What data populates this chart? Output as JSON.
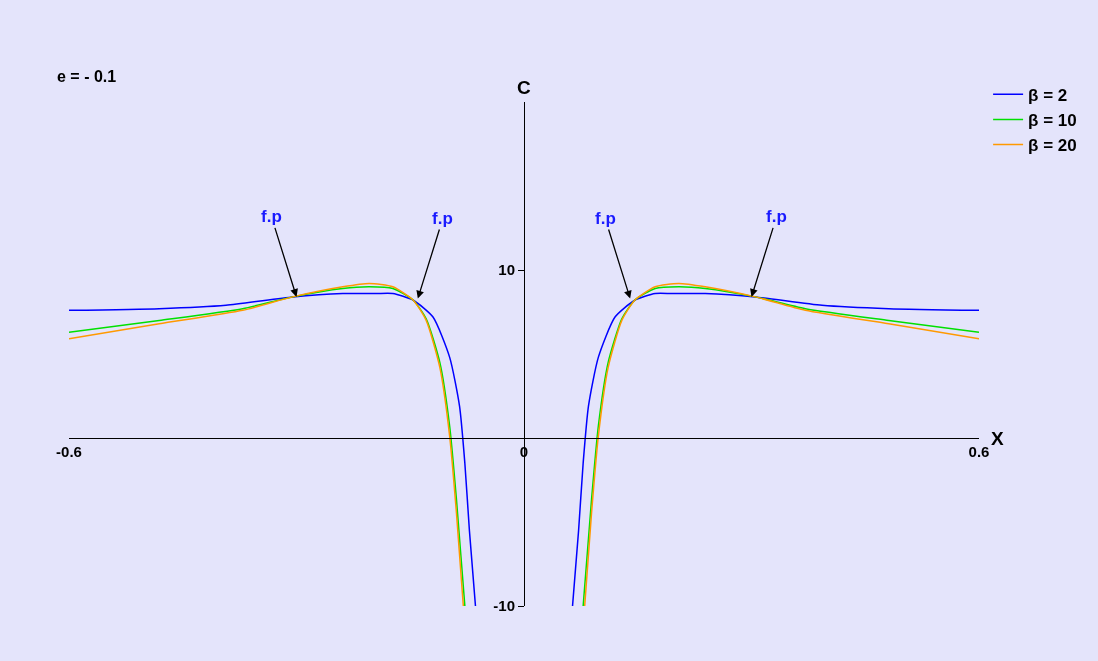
{
  "chart_data": {
    "type": "line",
    "xlabel": "X",
    "ylabel": "C",
    "annotations": [
      "e = - 0.1",
      {
        "text": "f.p",
        "x": -0.3,
        "y": 8.4
      },
      {
        "text": "f.p",
        "x": -0.14,
        "y": 8.3
      },
      {
        "text": "f.p",
        "x": 0.14,
        "y": 8.3
      },
      {
        "text": "f.p",
        "x": 0.3,
        "y": 8.4
      }
    ],
    "series": [
      {
        "name": "β = 2",
        "color": "#0000ff",
        "x": [
          -0.6,
          -0.481,
          -0.393,
          -0.305,
          -0.239,
          -0.195,
          -0.173,
          -0.146,
          -0.12,
          -0.098,
          -0.085,
          -0.078,
          -0.072,
          -0.064,
          0,
          0.064,
          0.072,
          0.078,
          0.085,
          0.098,
          0.12,
          0.146,
          0.173,
          0.195,
          0.239,
          0.305,
          0.393,
          0.481,
          0.6
        ],
        "values": [
          7.6,
          7.7,
          7.9,
          8.4,
          8.6,
          8.6,
          8.6,
          8.2,
          7.2,
          4.8,
          1.9,
          -1.5,
          -5.5,
          -10,
          null,
          -10,
          -5.5,
          -1.5,
          1.9,
          4.8,
          7.2,
          8.2,
          8.6,
          8.6,
          8.6,
          8.4,
          7.9,
          7.7,
          7.6
        ]
      },
      {
        "name": "β = 10",
        "color": "#00e000",
        "x": [
          -0.6,
          -0.481,
          -0.371,
          -0.305,
          -0.239,
          -0.204,
          -0.173,
          -0.146,
          -0.129,
          -0.111,
          -0.098,
          -0.089,
          -0.078,
          0,
          0.078,
          0.089,
          0.098,
          0.111,
          0.129,
          0.146,
          0.173,
          0.204,
          0.239,
          0.305,
          0.371,
          0.481,
          0.6
        ],
        "values": [
          6.3,
          7.0,
          7.7,
          8.4,
          8.9,
          9.0,
          8.9,
          8.2,
          7.1,
          4.5,
          0.7,
          -3.7,
          -10,
          null,
          -10,
          -3.7,
          0.7,
          4.5,
          7.1,
          8.2,
          8.9,
          9.0,
          8.9,
          8.4,
          7.7,
          7.0,
          6.3
        ]
      },
      {
        "name": "β = 20",
        "color": "#ff9900",
        "x": [
          -0.6,
          -0.481,
          -0.371,
          -0.305,
          -0.239,
          -0.204,
          -0.173,
          -0.146,
          -0.129,
          -0.111,
          -0.098,
          -0.089,
          -0.08,
          0,
          0.08,
          0.089,
          0.098,
          0.111,
          0.129,
          0.146,
          0.173,
          0.204,
          0.239,
          0.305,
          0.371,
          0.481,
          0.6
        ],
        "values": [
          5.9,
          6.8,
          7.6,
          8.4,
          9.0,
          9.2,
          9.0,
          8.2,
          7.0,
          4.2,
          0.1,
          -4.5,
          -10,
          null,
          -10,
          -4.5,
          0.1,
          4.2,
          7.0,
          8.2,
          9.0,
          9.2,
          9.0,
          8.4,
          7.6,
          6.8,
          5.9
        ]
      }
    ],
    "xlim": [
      -0.6,
      0.6
    ],
    "ylim": [
      -10,
      20
    ],
    "xticks": [
      -0.6,
      0,
      0.6
    ],
    "yticks": [
      -10,
      10
    ],
    "grid": false,
    "legend": "top right",
    "marker": "none",
    "line_style": "solid"
  }
}
